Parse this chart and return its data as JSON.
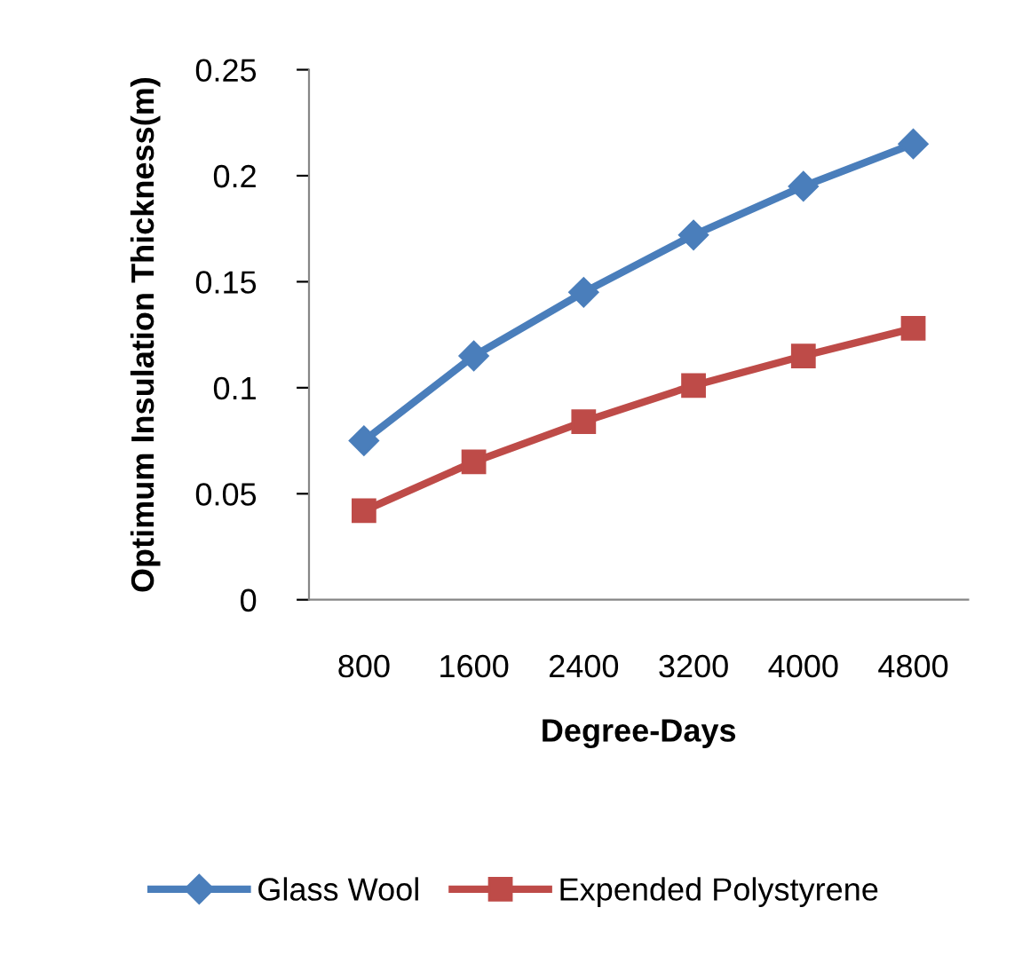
{
  "chart_data": {
    "type": "line",
    "xlabel": "Degree-Days",
    "ylabel": "Optimum Insulation Thickness(m)",
    "categories": [
      "800",
      "1600",
      "2400",
      "3200",
      "4000",
      "4800"
    ],
    "series": [
      {
        "name": "Glass Wool",
        "color": "#4a7ebb",
        "marker": "diamond",
        "values": [
          0.075,
          0.115,
          0.145,
          0.172,
          0.195,
          0.215
        ]
      },
      {
        "name": "Expended Polystyrene",
        "color": "#be4b48",
        "marker": "square",
        "values": [
          0.042,
          0.065,
          0.084,
          0.101,
          0.115,
          0.128
        ]
      }
    ],
    "ylim": [
      0,
      0.25
    ],
    "yticks": [
      {
        "value": 0,
        "label": "0"
      },
      {
        "value": 0.05,
        "label": "0.05"
      },
      {
        "value": 0.1,
        "label": "0.1"
      },
      {
        "value": 0.15,
        "label": "0.15"
      },
      {
        "value": 0.2,
        "label": "0.2"
      },
      {
        "value": 0.25,
        "label": "0.25"
      }
    ],
    "grid": false,
    "legend": "bottom",
    "line_style": "solid"
  }
}
